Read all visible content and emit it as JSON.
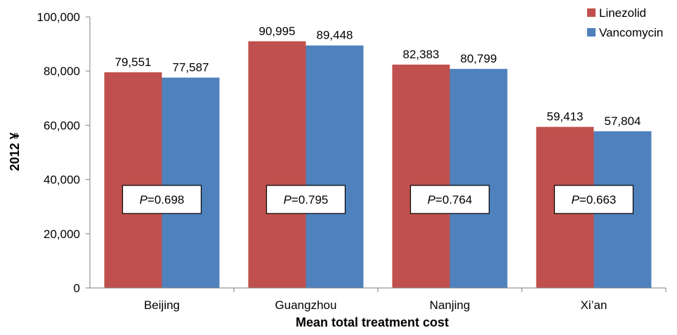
{
  "chart_data": {
    "type": "bar",
    "title": "",
    "xlabel": "Mean total treatment cost",
    "ylabel": "2012 ¥",
    "categories": [
      "Beijing",
      "Guangzhou",
      "Nanjing",
      "Xi’an"
    ],
    "series": [
      {
        "name": "Linezolid",
        "color": "#C0504D",
        "values": [
          79551,
          90995,
          82383,
          59413
        ],
        "labels": [
          "79,551",
          "90,995",
          "82,383",
          "59,413"
        ]
      },
      {
        "name": "Vancomycin",
        "color": "#4F81BD",
        "values": [
          77587,
          89448,
          80799,
          57804
        ],
        "labels": [
          "77,587",
          "89,448",
          "80,799",
          "57,804"
        ]
      }
    ],
    "ylim": [
      0,
      100000
    ],
    "yticks": [
      0,
      20000,
      40000,
      60000,
      80000,
      100000
    ],
    "ytick_labels": [
      "0",
      "20,000",
      "40,000",
      "60,000",
      "80,000",
      "100,000"
    ],
    "annotations": [
      {
        "prefix": "P",
        "text": "=0.698"
      },
      {
        "prefix": "P",
        "text": "=0.795"
      },
      {
        "prefix": "P",
        "text": "=0.764"
      },
      {
        "prefix": "P",
        "text": "=0.663"
      }
    ],
    "legend_position": "top-right",
    "grid": false
  }
}
